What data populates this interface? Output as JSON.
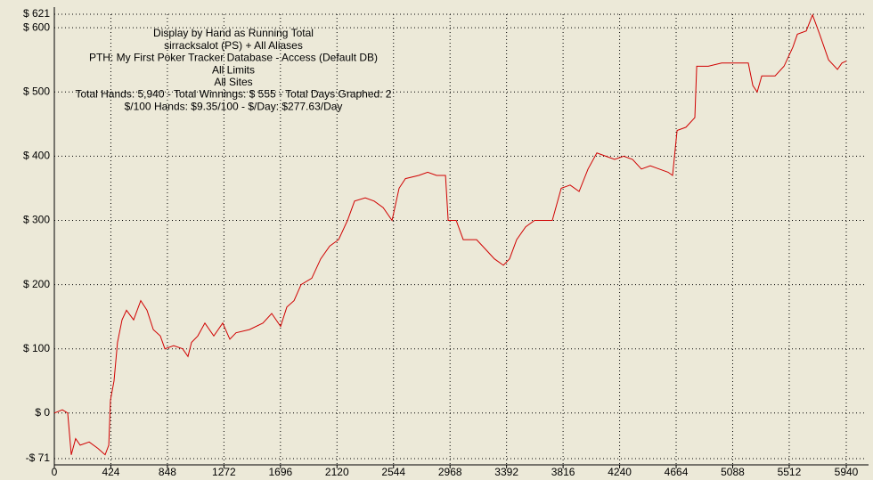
{
  "chart_data": {
    "type": "line",
    "annotations": [
      "Display by Hand as Running Total",
      "sirracksalot (PS) + All Aliases",
      "PTH: My First Poker Tracker Database - Access (Default DB)",
      "All Limits",
      "All Sites",
      "Total Hands: 5,940 - Total Winnings: $ 555 - Total Days Graphed: 2",
      "$/100 Hands: $9.35/100 - $/Day: $277.63/Day"
    ],
    "x": [
      0,
      60,
      100,
      127,
      160,
      194,
      261,
      327,
      381,
      408,
      421,
      448,
      474,
      508,
      541,
      595,
      648,
      695,
      742,
      795,
      829,
      895,
      962,
      1002,
      1029,
      1076,
      1129,
      1196,
      1263,
      1316,
      1363,
      1463,
      1564,
      1630,
      1697,
      1744,
      1798,
      1851,
      1931,
      1998,
      2065,
      2132,
      2199,
      2252,
      2332,
      2399,
      2466,
      2533,
      2586,
      2633,
      2733,
      2800,
      2867,
      2934,
      2954,
      3014,
      3067,
      3167,
      3234,
      3301,
      3368,
      3414,
      3468,
      3535,
      3602,
      3668,
      3735,
      3802,
      3869,
      3936,
      4003,
      4069,
      4136,
      4203,
      4270,
      4337,
      4403,
      4470,
      4537,
      4604,
      4637,
      4671,
      4737,
      4804,
      4818,
      4905,
      5005,
      5105,
      5205,
      5239,
      5272,
      5306,
      5406,
      5473,
      5540,
      5573,
      5640,
      5687,
      5740,
      5807,
      5874,
      5907,
      5940
    ],
    "values": [
      0,
      5,
      0,
      -65,
      -40,
      -50,
      -45,
      -55,
      -65,
      -50,
      20,
      50,
      110,
      145,
      160,
      145,
      175,
      160,
      130,
      120,
      100,
      105,
      100,
      88,
      110,
      120,
      140,
      120,
      140,
      115,
      125,
      130,
      140,
      155,
      135,
      165,
      175,
      200,
      210,
      240,
      260,
      270,
      300,
      330,
      335,
      330,
      320,
      300,
      350,
      365,
      370,
      375,
      370,
      370,
      300,
      300,
      270,
      270,
      255,
      240,
      230,
      240,
      270,
      290,
      300,
      300,
      300,
      350,
      355,
      345,
      380,
      405,
      400,
      395,
      400,
      395,
      380,
      385,
      380,
      375,
      370,
      440,
      445,
      460,
      540,
      540,
      545,
      545,
      545,
      510,
      500,
      525,
      525,
      540,
      570,
      590,
      595,
      620,
      590,
      550,
      535,
      545,
      548
    ],
    "color": "#d00000",
    "xlim": [
      0,
      5940
    ],
    "xticks": [
      0,
      424,
      848,
      1272,
      1696,
      2120,
      2544,
      2968,
      3392,
      3816,
      4240,
      4664,
      5088,
      5512,
      5940
    ],
    "ylim": [
      -71,
      621
    ],
    "yticks": [
      {
        "value": -71,
        "label": "-$ 71"
      },
      {
        "value": 0,
        "label": "$ 0"
      },
      {
        "value": 100,
        "label": "$ 100"
      },
      {
        "value": 200,
        "label": "$ 200"
      },
      {
        "value": 300,
        "label": "$ 300"
      },
      {
        "value": 400,
        "label": "$ 400"
      },
      {
        "value": 500,
        "label": "$ 500"
      },
      {
        "value": 600,
        "label": "$ 600"
      },
      {
        "value": 621,
        "label": "$ 621"
      }
    ],
    "grid": true
  }
}
